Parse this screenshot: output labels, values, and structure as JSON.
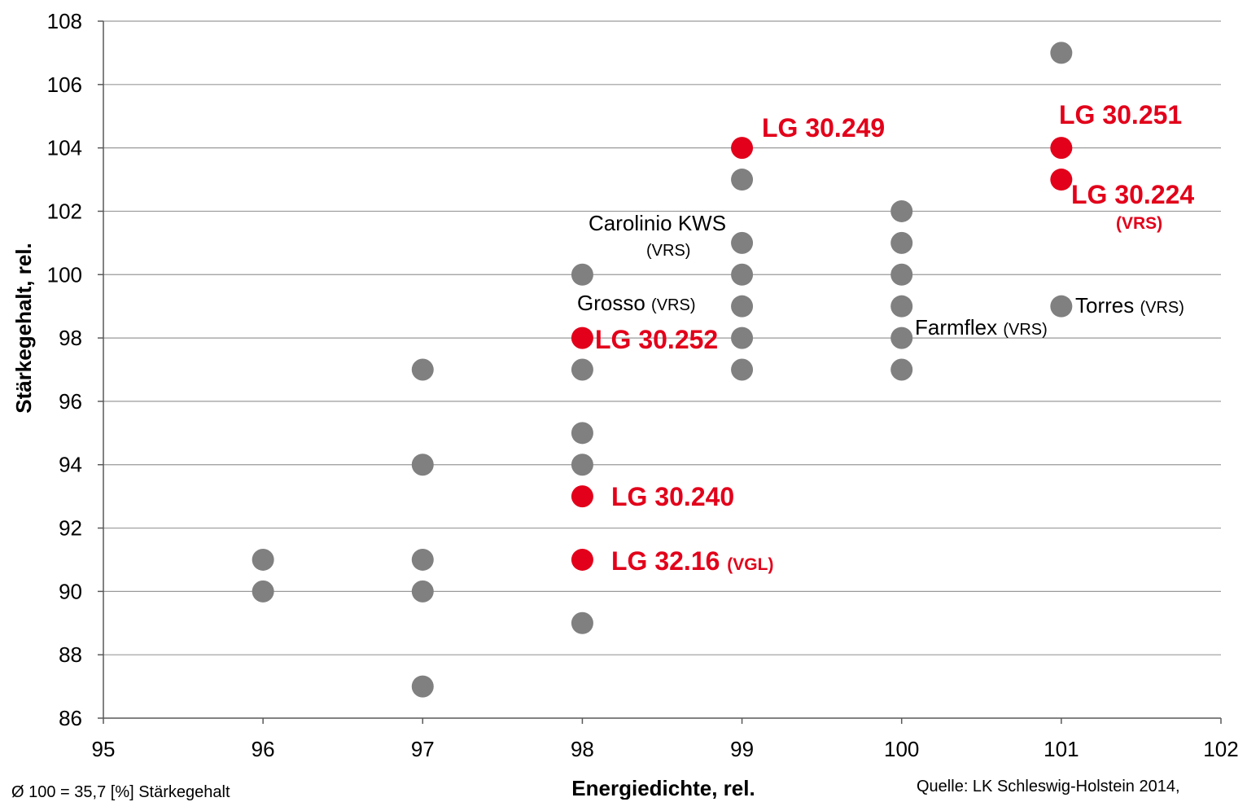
{
  "colors": {
    "grey": "#808080",
    "red": "#e2001a",
    "grid": "#9a9a9a",
    "axis": "#595959"
  },
  "chart_data": {
    "type": "scatter",
    "xlabel": "Energiedichte, rel.",
    "ylabel": "Stärkegehalt, rel.",
    "xlim": [
      95,
      102
    ],
    "ylim": [
      86,
      108
    ],
    "xticks": [
      95,
      96,
      97,
      98,
      99,
      100,
      101,
      102
    ],
    "yticks": [
      86,
      88,
      90,
      92,
      94,
      96,
      98,
      100,
      102,
      104,
      106,
      108
    ],
    "grid": "horizontal",
    "series": [
      {
        "color": "#808080",
        "points": [
          [
            96,
            91
          ],
          [
            96,
            90
          ],
          [
            97,
            97
          ],
          [
            97,
            94
          ],
          [
            97,
            91
          ],
          [
            97,
            90
          ],
          [
            97,
            87
          ],
          [
            98,
            100
          ],
          [
            98,
            97
          ],
          [
            98,
            95
          ],
          [
            98,
            94
          ],
          [
            98,
            89
          ],
          [
            99,
            103
          ],
          [
            99,
            101
          ],
          [
            99,
            100
          ],
          [
            99,
            99
          ],
          [
            99,
            98
          ],
          [
            99,
            97
          ],
          [
            100,
            102
          ],
          [
            100,
            101
          ],
          [
            100,
            100
          ],
          [
            100,
            99
          ],
          [
            100,
            98
          ],
          [
            100,
            97
          ],
          [
            101,
            107
          ],
          [
            101,
            99
          ]
        ]
      },
      {
        "color": "#e2001a",
        "points": [
          [
            99,
            104
          ],
          [
            101,
            104
          ],
          [
            101,
            103
          ],
          [
            98,
            98
          ],
          [
            98,
            93
          ],
          [
            98,
            91
          ]
        ]
      }
    ],
    "annotations": [
      {
        "text": "LG 30.249",
        "suffix": "",
        "color": "red"
      },
      {
        "text": "LG 30.251",
        "suffix": "",
        "color": "red"
      },
      {
        "text": "LG 30.224",
        "suffix": "",
        "color": "red"
      },
      {
        "text": "(VRS)",
        "suffix": "",
        "color": "red-small"
      },
      {
        "text": "Carolinio KWS",
        "suffix": "",
        "color": "black"
      },
      {
        "text": "(VRS)",
        "suffix": "",
        "color": "black-small"
      },
      {
        "text": "Grosso",
        "suffix": "(VRS)",
        "color": "black"
      },
      {
        "text": "LG 30.252",
        "suffix": "",
        "color": "red"
      },
      {
        "text": "Farmflex",
        "suffix": "(VRS)",
        "color": "black"
      },
      {
        "text": "Torres",
        "suffix": "(VRS)",
        "color": "black"
      },
      {
        "text": "LG 30.240",
        "suffix": "",
        "color": "red"
      },
      {
        "text": "LG 32.16",
        "suffix": "(VGL)",
        "color": "red"
      }
    ]
  },
  "footnote_left": "Ø 100 = 35,7 [%] Stärkegehalt",
  "footnote_right": "Quelle:  LK Schleswig-Holstein  2014,"
}
